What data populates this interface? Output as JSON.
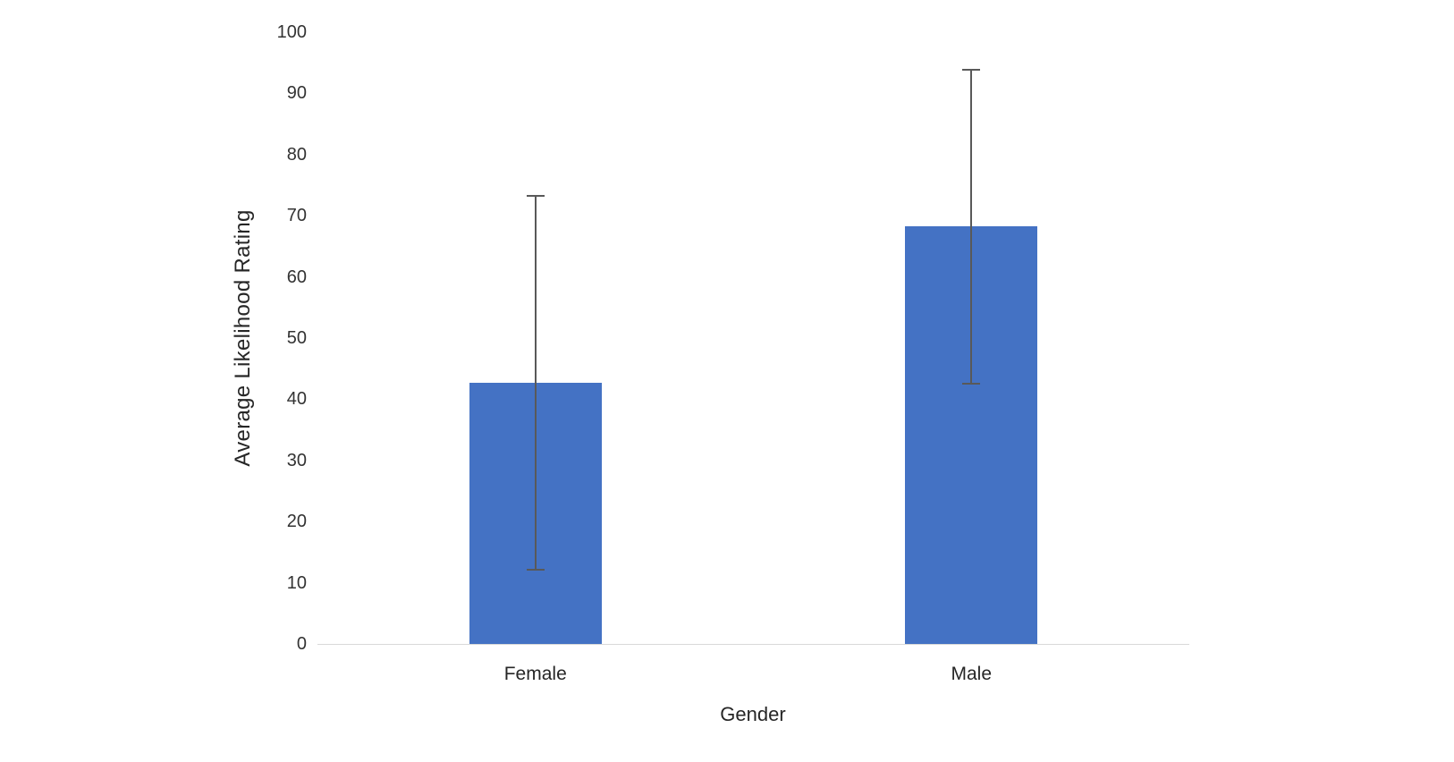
{
  "chart_data": {
    "type": "bar",
    "title": "",
    "categories": [
      "Female",
      "Male"
    ],
    "values": [
      42.7,
      68.3
    ],
    "error_bars": {
      "upper": [
        73.3,
        93.8
      ],
      "lower": [
        12.2,
        42.6
      ]
    },
    "xlabel": "Gender",
    "ylabel": "Average Likelihood Rating",
    "ylim": [
      0,
      100
    ],
    "yticks": [
      0,
      10,
      20,
      30,
      40,
      50,
      60,
      70,
      80,
      90,
      100
    ],
    "grid": false,
    "legend": false,
    "colors": {
      "bar": "#4472C4",
      "error_bar": "#595959",
      "axis_line": "#D9D9D9",
      "text": "#262626"
    }
  }
}
